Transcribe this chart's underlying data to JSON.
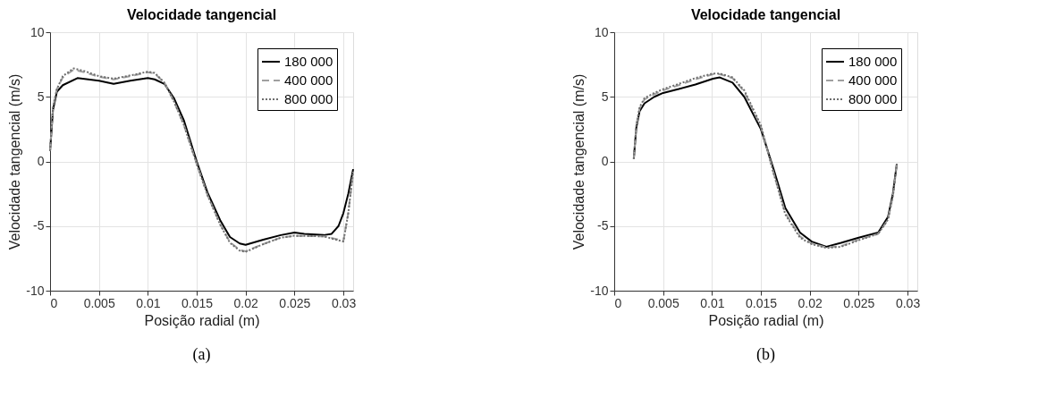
{
  "chart_data": [
    {
      "type": "line",
      "title": "Velocidade tangencial",
      "xlabel": "Posição radial (m)",
      "ylabel": "Velocidade tangencial (m/s)",
      "annotations": [
        "(a)"
      ],
      "xlim": [
        0,
        0.031
      ],
      "xticks": [
        0,
        0.005,
        0.01,
        0.015,
        0.02,
        0.025,
        0.03
      ],
      "ylim": [
        -10,
        10
      ],
      "yticks": [
        -10,
        -5,
        0,
        5,
        10
      ],
      "grid": true,
      "legend": "top right",
      "series": [
        {
          "name": "180 000",
          "color": "#000000",
          "line_style": "solid",
          "x": [
            0,
            0.0003,
            0.0007,
            0.0013,
            0.0028,
            0.005,
            0.0065,
            0.0082,
            0.01,
            0.0107,
            0.0117,
            0.0127,
            0.0137,
            0.015,
            0.0161,
            0.0174,
            0.0184,
            0.0194,
            0.02,
            0.0218,
            0.0236,
            0.025,
            0.026,
            0.028,
            0.0288,
            0.0295,
            0.03,
            0.0305,
            0.031
          ],
          "values": [
            0.8,
            4.0,
            5.4,
            5.9,
            6.45,
            6.25,
            6.0,
            6.25,
            6.45,
            6.35,
            6.0,
            4.85,
            3.15,
            0,
            -2.4,
            -4.55,
            -5.85,
            -6.35,
            -6.45,
            -6.05,
            -5.7,
            -5.5,
            -5.6,
            -5.7,
            -5.6,
            -5.0,
            -4.0,
            -2.5,
            -0.6
          ]
        },
        {
          "name": "400 000",
          "color": "#a0a0a0",
          "line_style": "dashed",
          "x": [
            0,
            0.0003,
            0.0007,
            0.0013,
            0.0024,
            0.0035,
            0.005,
            0.0065,
            0.0085,
            0.01,
            0.0107,
            0.0117,
            0.0127,
            0.0137,
            0.015,
            0.0161,
            0.0174,
            0.0184,
            0.0194,
            0.02,
            0.0218,
            0.0236,
            0.025,
            0.028,
            0.0295,
            0.03,
            0.0305,
            0.031
          ],
          "values": [
            0.8,
            4.2,
            5.6,
            6.5,
            7.1,
            6.9,
            6.55,
            6.35,
            6.65,
            6.9,
            6.8,
            6.1,
            4.6,
            2.8,
            -0.2,
            -2.6,
            -4.85,
            -6.25,
            -6.85,
            -6.95,
            -6.4,
            -5.9,
            -5.75,
            -5.8,
            -6.05,
            -6.15,
            -4.0,
            -0.8
          ]
        },
        {
          "name": "800 000",
          "color": "#6e6e6e",
          "line_style": "dotted",
          "x": [
            0,
            0.0003,
            0.0007,
            0.0013,
            0.0024,
            0.0035,
            0.005,
            0.0065,
            0.0085,
            0.01,
            0.0107,
            0.0117,
            0.0127,
            0.0137,
            0.015,
            0.0161,
            0.0174,
            0.0184,
            0.0194,
            0.02,
            0.0218,
            0.0236,
            0.025,
            0.028,
            0.0295,
            0.03,
            0.0305,
            0.031
          ],
          "values": [
            0.8,
            4.2,
            5.6,
            6.6,
            7.2,
            7.0,
            6.6,
            6.4,
            6.7,
            6.95,
            6.85,
            6.1,
            4.6,
            2.8,
            -0.2,
            -2.6,
            -4.9,
            -6.3,
            -6.9,
            -7.0,
            -6.4,
            -5.9,
            -5.75,
            -5.8,
            -6.1,
            -6.2,
            -4.0,
            -0.8
          ]
        }
      ]
    },
    {
      "type": "line",
      "title": "Velocidade tangencial",
      "xlabel": "Posição radial (m)",
      "ylabel": "Velocidade tangencial (m/s)",
      "annotations": [
        "(b)"
      ],
      "xlim": [
        0,
        0.031
      ],
      "xticks": [
        0,
        0.005,
        0.01,
        0.015,
        0.02,
        0.025,
        0.03
      ],
      "ylim": [
        -10,
        10
      ],
      "yticks": [
        -10,
        -5,
        0,
        5,
        10
      ],
      "grid": true,
      "legend": "top right",
      "series": [
        {
          "name": "180 000",
          "color": "#000000",
          "line_style": "solid",
          "x": [
            0.002,
            0.00226,
            0.0026,
            0.0031,
            0.0041,
            0.005,
            0.0066,
            0.0083,
            0.0101,
            0.0108,
            0.0121,
            0.0133,
            0.015,
            0.0163,
            0.0175,
            0.019,
            0.0202,
            0.0217,
            0.0232,
            0.025,
            0.027,
            0.028,
            0.0285,
            0.0289
          ],
          "values": [
            0.2,
            2.6,
            3.9,
            4.5,
            5.0,
            5.3,
            5.6,
            5.95,
            6.4,
            6.5,
            6.1,
            5.0,
            2.5,
            -0.6,
            -3.6,
            -5.5,
            -6.2,
            -6.6,
            -6.3,
            -5.9,
            -5.5,
            -4.3,
            -2.5,
            -0.2
          ]
        },
        {
          "name": "400 000",
          "color": "#a0a0a0",
          "line_style": "dashed",
          "x": [
            0.002,
            0.00226,
            0.0026,
            0.0031,
            0.0041,
            0.005,
            0.0066,
            0.0083,
            0.0101,
            0.0108,
            0.0121,
            0.0133,
            0.015,
            0.0163,
            0.0175,
            0.019,
            0.0202,
            0.0217,
            0.0232,
            0.025,
            0.027,
            0.028,
            0.0285,
            0.0289
          ],
          "values": [
            0.2,
            2.8,
            4.1,
            4.8,
            5.2,
            5.5,
            5.9,
            6.35,
            6.75,
            6.75,
            6.45,
            5.4,
            2.7,
            -0.9,
            -4.0,
            -5.8,
            -6.35,
            -6.65,
            -6.55,
            -6.05,
            -5.6,
            -4.5,
            -2.7,
            -0.2
          ]
        },
        {
          "name": "800 000",
          "color": "#6e6e6e",
          "line_style": "dotted",
          "x": [
            0.002,
            0.00226,
            0.0026,
            0.0031,
            0.0041,
            0.005,
            0.0066,
            0.0083,
            0.0101,
            0.0108,
            0.0121,
            0.0133,
            0.015,
            0.0163,
            0.0175,
            0.019,
            0.0202,
            0.0217,
            0.0232,
            0.025,
            0.027,
            0.028,
            0.0285,
            0.0289
          ],
          "values": [
            0.2,
            2.8,
            4.2,
            4.9,
            5.3,
            5.6,
            6.0,
            6.45,
            6.8,
            6.8,
            6.5,
            5.5,
            2.8,
            -0.9,
            -4.1,
            -5.9,
            -6.4,
            -6.7,
            -6.6,
            -6.1,
            -5.6,
            -4.5,
            -2.7,
            -0.2
          ]
        }
      ]
    }
  ]
}
